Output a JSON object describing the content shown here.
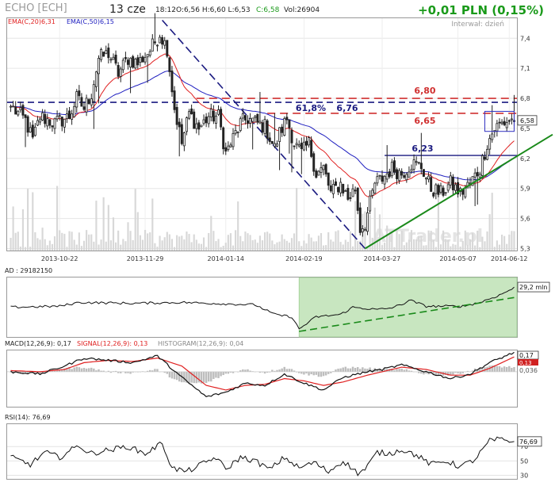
{
  "header": {
    "ticker": "ECHO [ECH]",
    "date": "13 cze",
    "time": "18:12",
    "ohlc": "O:6,56 H:6,60 L:6,53",
    "close": "C:6,58",
    "volume": "Vol:26904",
    "change": "+0,01 PLN (0,15%)",
    "interval": "Interwał: dzień",
    "ema20": "EMA(C,20)6,31",
    "ema50": "EMA(C,50)6,15"
  },
  "colors": {
    "up": "#1a9a1a",
    "down": "#d02020",
    "ema20": "#e02020",
    "ema50": "#2020c0",
    "resistance": "#d03030",
    "blue_line": "#1a1a80",
    "support": "#1a8a1a",
    "highlight": "#c8e6c0"
  },
  "watermark": "ATTrader.pl",
  "chart_data": [
    {
      "id": "price",
      "type": "candlestick",
      "x_ticks": [
        "2013-10-22",
        "2013-11-29",
        "2014-01-14",
        "2014-02-19",
        "2014-03-27",
        "2014-05-07",
        "2014-06-12"
      ],
      "y_ticks": [
        5.3,
        5.6,
        5.9,
        6.2,
        6.5,
        6.8,
        7.1,
        7.4
      ],
      "y_tick_labels": [
        "5,3",
        "5,6",
        "5,9",
        "6,2",
        "6,5",
        "6,8",
        "7,1",
        "7,4"
      ],
      "ylim": [
        5.28,
        7.6
      ],
      "last_price_label": "6,58",
      "ema20_last": 6.31,
      "ema50_last": 6.15,
      "close_anchors": [
        [
          0,
          6.72
        ],
        [
          6,
          6.58
        ],
        [
          9,
          6.38
        ],
        [
          12,
          6.62
        ],
        [
          18,
          6.55
        ],
        [
          24,
          6.62
        ],
        [
          27,
          6.8
        ],
        [
          30,
          6.7
        ],
        [
          33,
          6.85
        ],
        [
          36,
          7.2
        ],
        [
          40,
          7.25
        ],
        [
          44,
          7.05
        ],
        [
          48,
          7.2
        ],
        [
          52,
          7.15
        ],
        [
          57,
          7.28
        ],
        [
          61,
          7.45
        ],
        [
          64,
          7.3
        ],
        [
          67,
          6.7
        ],
        [
          70,
          6.35
        ],
        [
          73,
          6.65
        ],
        [
          77,
          6.5
        ],
        [
          81,
          6.62
        ],
        [
          85,
          6.62
        ],
        [
          88,
          6.25
        ],
        [
          91,
          6.4
        ],
        [
          94,
          6.55
        ],
        [
          97,
          6.6
        ],
        [
          101,
          6.55
        ],
        [
          104,
          6.52
        ],
        [
          108,
          6.3
        ],
        [
          110,
          6.45
        ],
        [
          113,
          6.6
        ],
        [
          116,
          6.35
        ],
        [
          119,
          6.25
        ],
        [
          122,
          6.35
        ],
        [
          125,
          6.05
        ],
        [
          128,
          6.1
        ],
        [
          131,
          5.85
        ],
        [
          135,
          5.95
        ],
        [
          138,
          5.8
        ],
        [
          141,
          5.9
        ],
        [
          143,
          5.5
        ],
        [
          145,
          5.55
        ],
        [
          149,
          5.95
        ],
        [
          152,
          6.0
        ],
        [
          156,
          6.1
        ],
        [
          160,
          6.05
        ],
        [
          164,
          6.15
        ],
        [
          168,
          6.12
        ],
        [
          172,
          5.9
        ],
        [
          176,
          5.85
        ],
        [
          180,
          5.95
        ],
        [
          184,
          5.85
        ],
        [
          188,
          5.95
        ],
        [
          192,
          6.1
        ],
        [
          195,
          6.35
        ],
        [
          198,
          6.5
        ],
        [
          201,
          6.55
        ],
        [
          204,
          6.58
        ]
      ],
      "volume_bars": "relative heights (0-1) shown in the lower part of the price panel",
      "annotations": {
        "resistance_6_80": {
          "label": "6,80",
          "value": 6.8
        },
        "resistance_6_65": {
          "label": "6,65",
          "value": 6.65
        },
        "fib_level": {
          "label": "61,8%",
          "value": 6.76
        },
        "fib_value_label": "6,76",
        "support_6_23": {
          "label": "6,23",
          "value": 6.23
        },
        "downtrend_line": {
          "from": [
            62,
            7.58
          ],
          "to": [
            145,
            5.3
          ]
        },
        "uptrend_line": {
          "from": [
            145,
            5.3
          ],
          "to": [
            206,
            6.28
          ]
        },
        "consolidation_box": {
          "from_bar": 194,
          "to_bar": 206,
          "low": 6.47,
          "high": 6.67
        }
      }
    },
    {
      "id": "ad",
      "type": "line",
      "title": "AD : 29182150",
      "last_label": "29,2 mln",
      "anchors": [
        [
          0,
          0.5
        ],
        [
          20,
          0.52
        ],
        [
          28,
          0.6
        ],
        [
          50,
          0.58
        ],
        [
          70,
          0.6
        ],
        [
          100,
          0.55
        ],
        [
          108,
          0.35
        ],
        [
          115,
          0.3
        ],
        [
          118,
          0.05
        ],
        [
          125,
          0.3
        ],
        [
          135,
          0.35
        ],
        [
          140,
          0.5
        ],
        [
          150,
          0.45
        ],
        [
          155,
          0.48
        ],
        [
          160,
          0.55
        ],
        [
          163,
          0.65
        ],
        [
          170,
          0.52
        ],
        [
          185,
          0.52
        ],
        [
          192,
          0.6
        ],
        [
          200,
          0.75
        ],
        [
          206,
          0.9
        ]
      ],
      "shaded_from_bar": 118,
      "trendline": {
        "from": [
          118,
          0.0
        ],
        "to": [
          206,
          0.7
        ]
      }
    },
    {
      "id": "macd",
      "type": "line",
      "title_macd": "MACD(12,26,9): 0,17",
      "title_signal": "SIGNAL(12,26,9): 0,13",
      "title_histogram": "HISTOGRAM(12,26,9): 0,04",
      "macd_label": "0,17",
      "signal_label": "0,13",
      "histogram_label": "0,036",
      "macd_last": 0.17,
      "signal_last": 0.13,
      "histogram_last": 0.04,
      "ylim": [
        -0.3,
        0.18
      ],
      "macd_anchors": [
        [
          0,
          0.0
        ],
        [
          12,
          -0.02
        ],
        [
          22,
          0.05
        ],
        [
          30,
          0.12
        ],
        [
          40,
          0.1
        ],
        [
          50,
          0.08
        ],
        [
          60,
          0.14
        ],
        [
          70,
          -0.05
        ],
        [
          80,
          -0.22
        ],
        [
          88,
          -0.18
        ],
        [
          96,
          -0.1
        ],
        [
          104,
          -0.12
        ],
        [
          112,
          -0.02
        ],
        [
          120,
          -0.1
        ],
        [
          128,
          -0.16
        ],
        [
          136,
          -0.05
        ],
        [
          146,
          0.0
        ],
        [
          152,
          0.02
        ],
        [
          160,
          0.06
        ],
        [
          170,
          0.0
        ],
        [
          180,
          -0.06
        ],
        [
          188,
          -0.02
        ],
        [
          196,
          0.08
        ],
        [
          206,
          0.17
        ]
      ],
      "signal_anchors": [
        [
          0,
          0.01
        ],
        [
          12,
          0.0
        ],
        [
          22,
          0.02
        ],
        [
          30,
          0.08
        ],
        [
          40,
          0.1
        ],
        [
          50,
          0.09
        ],
        [
          60,
          0.12
        ],
        [
          70,
          0.05
        ],
        [
          80,
          -0.12
        ],
        [
          88,
          -0.16
        ],
        [
          96,
          -0.12
        ],
        [
          104,
          -0.11
        ],
        [
          112,
          -0.06
        ],
        [
          120,
          -0.08
        ],
        [
          128,
          -0.12
        ],
        [
          136,
          -0.09
        ],
        [
          146,
          -0.03
        ],
        [
          152,
          0.0
        ],
        [
          160,
          0.04
        ],
        [
          170,
          0.02
        ],
        [
          180,
          -0.03
        ],
        [
          188,
          -0.03
        ],
        [
          196,
          0.03
        ],
        [
          206,
          0.13
        ]
      ]
    },
    {
      "id": "rsi",
      "type": "line",
      "title": "RSI(14): 76,69",
      "last_label": "76,69",
      "y_ticks": [
        30,
        50,
        70
      ],
      "y_tick_labels": [
        "30",
        "50",
        "70"
      ],
      "ylim": [
        25,
        100
      ],
      "anchors": [
        [
          0,
          55
        ],
        [
          8,
          45
        ],
        [
          14,
          62
        ],
        [
          20,
          55
        ],
        [
          28,
          72
        ],
        [
          32,
          60
        ],
        [
          40,
          65
        ],
        [
          48,
          70
        ],
        [
          55,
          60
        ],
        [
          62,
          75
        ],
        [
          66,
          40
        ],
        [
          72,
          35
        ],
        [
          78,
          45
        ],
        [
          84,
          55
        ],
        [
          88,
          38
        ],
        [
          94,
          55
        ],
        [
          100,
          50
        ],
        [
          106,
          38
        ],
        [
          112,
          55
        ],
        [
          118,
          40
        ],
        [
          124,
          48
        ],
        [
          130,
          35
        ],
        [
          136,
          50
        ],
        [
          142,
          33
        ],
        [
          145,
          38
        ],
        [
          150,
          62
        ],
        [
          155,
          60
        ],
        [
          160,
          66
        ],
        [
          166,
          58
        ],
        [
          172,
          45
        ],
        [
          178,
          50
        ],
        [
          184,
          42
        ],
        [
          190,
          52
        ],
        [
          196,
          78
        ],
        [
          200,
          80
        ],
        [
          206,
          77
        ]
      ]
    }
  ]
}
